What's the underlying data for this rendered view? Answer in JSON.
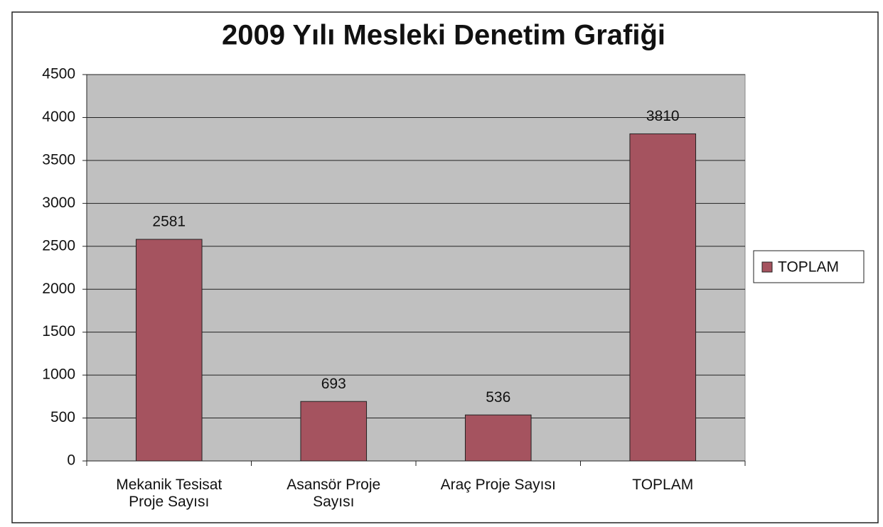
{
  "chart_data": {
    "type": "bar",
    "title": "2009 Yılı Mesleki Denetim Grafiği",
    "categories": [
      "Mekanik Tesisat Proje Sayısı",
      "Asansör Proje Sayısı",
      "Araç Proje Sayısı",
      "TOPLAM"
    ],
    "series": [
      {
        "name": "TOPLAM",
        "color": "#a5535f",
        "values": [
          2581,
          693,
          536,
          3810
        ]
      }
    ],
    "ylim": [
      0,
      4500
    ],
    "yticks": [
      0,
      500,
      1000,
      1500,
      2000,
      2500,
      3000,
      3500,
      4000,
      4500
    ],
    "grid": true,
    "legend": "right"
  }
}
